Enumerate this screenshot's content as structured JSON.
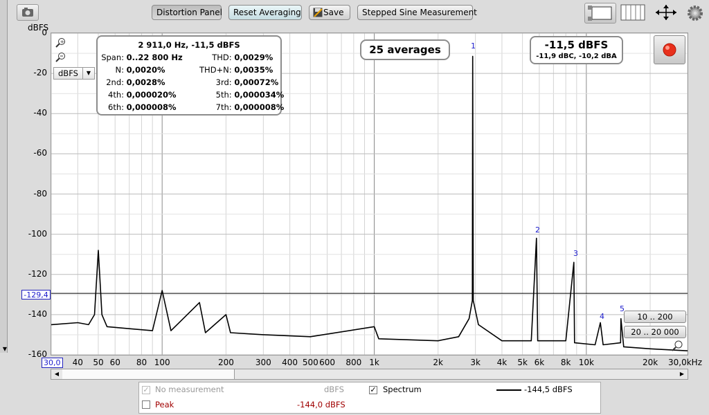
{
  "toolbar": {
    "distortion_panel": "Distortion Panel",
    "reset_averaging": "Reset Averaging",
    "save": "Save",
    "stepped_sine": "Stepped Sine Measurement"
  },
  "axis": {
    "y_unit": "dBFS",
    "y_ticks": [
      "0",
      "-20",
      "-40",
      "-60",
      "-80",
      "-100",
      "-120",
      "-140",
      "-160"
    ],
    "x_ticks": [
      "30,0",
      "40",
      "50",
      "60",
      "80",
      "100",
      "200",
      "300",
      "400",
      "500",
      "600",
      "800",
      "1k",
      "2k",
      "3k",
      "4k",
      "5k",
      "6k",
      "8k",
      "10k",
      "20k",
      "30,0kHz"
    ],
    "unit_select": "dBFS",
    "cursor_level": "-129,4"
  },
  "distortion": {
    "header": "2 911,0 Hz, -11,5 dBFS",
    "rows": [
      {
        "l1": "Span:",
        "v1": "0..22 800 Hz",
        "l2": "THD:",
        "v2": "0,0029%"
      },
      {
        "l1": "N:",
        "v1": "0,0020%",
        "l2": "THD+N:",
        "v2": "0,0035%"
      },
      {
        "l1": "2nd:",
        "v1": "0,0028%",
        "l2": "3rd:",
        "v2": "0,00072%"
      },
      {
        "l1": "4th:",
        "v1": "0,000020%",
        "l2": "5th:",
        "v2": "0,000034%"
      },
      {
        "l1": "6th:",
        "v1": "0,000008%",
        "l2": "7th:",
        "v2": "0,000008%"
      }
    ]
  },
  "averages": "25 averages",
  "level": {
    "main": "-11,5 dBFS",
    "sub": "-11,9 dBC, -10,2 dBA"
  },
  "harmonics": [
    "1",
    "2",
    "3",
    "4",
    "5"
  ],
  "range_buttons": {
    "low": "10 .. 200",
    "full": "20 .. 20 000"
  },
  "legend": {
    "no_measurement": "No measurement",
    "no_measurement_unit": "dBFS",
    "spectrum": "Spectrum",
    "spectrum_value": "-144,5 dBFS",
    "peak": "Peak",
    "peak_value": "-144,0 dBFS"
  },
  "colors": {
    "accent_blue": "#1a1acc",
    "peak_red": "#a00000",
    "record_red": "#e8301c"
  },
  "chart_data": {
    "type": "line",
    "title": "",
    "xlabel": "",
    "ylabel": "dBFS",
    "xscale": "log",
    "xlim": [
      30,
      30000
    ],
    "ylim": [
      -160,
      0
    ],
    "grid": true,
    "series": [
      {
        "name": "Spectrum",
        "points": [
          [
            30,
            -145
          ],
          [
            40,
            -144
          ],
          [
            45,
            -145
          ],
          [
            48,
            -140
          ],
          [
            50,
            -108
          ],
          [
            52,
            -140
          ],
          [
            55,
            -146
          ],
          [
            70,
            -147
          ],
          [
            90,
            -148
          ],
          [
            100,
            -128
          ],
          [
            110,
            -148
          ],
          [
            150,
            -134
          ],
          [
            160,
            -149
          ],
          [
            200,
            -140
          ],
          [
            210,
            -149
          ],
          [
            300,
            -150
          ],
          [
            500,
            -151
          ],
          [
            1000,
            -146
          ],
          [
            1050,
            -152
          ],
          [
            2000,
            -153
          ],
          [
            2500,
            -151
          ],
          [
            2800,
            -142
          ],
          [
            2900,
            -133
          ],
          [
            2911,
            -11.5
          ],
          [
            2930,
            -133
          ],
          [
            3100,
            -145
          ],
          [
            4000,
            -153
          ],
          [
            5500,
            -153
          ],
          [
            5820,
            -102
          ],
          [
            5900,
            -153
          ],
          [
            8000,
            -153
          ],
          [
            8733,
            -114
          ],
          [
            8800,
            -154
          ],
          [
            11000,
            -155
          ],
          [
            11644,
            -144
          ],
          [
            12000,
            -155
          ],
          [
            14500,
            -154
          ],
          [
            14555,
            -142
          ],
          [
            15000,
            -156
          ],
          [
            20000,
            -157
          ],
          [
            30000,
            -158
          ]
        ]
      }
    ],
    "cursor_line": -129.4,
    "harmonic_markers": [
      {
        "label": "1",
        "x": 2911,
        "y": -11.5
      },
      {
        "label": "2",
        "x": 5822,
        "y": -102
      },
      {
        "label": "3",
        "x": 8733,
        "y": -114
      },
      {
        "label": "4",
        "x": 11644,
        "y": -144
      },
      {
        "label": "5",
        "x": 14555,
        "y": -142
      }
    ]
  }
}
